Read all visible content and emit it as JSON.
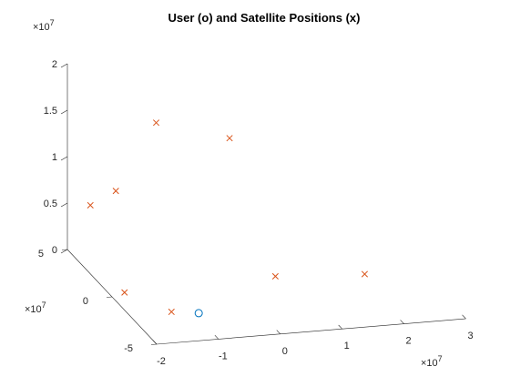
{
  "chart_data": {
    "type": "scatter",
    "projection": "3d",
    "title": "User (o) and Satellite Positions (x)",
    "xlabel": "",
    "ylabel": "",
    "zlabel": "",
    "grid": false,
    "xlim": [
      -2,
      3
    ],
    "ylim": [
      -5,
      5
    ],
    "zlim": [
      0,
      2
    ],
    "x_ticks": [
      "-2",
      "-1",
      "0",
      "1",
      "2",
      "3"
    ],
    "y_ticks": [
      "-5",
      "0",
      "5"
    ],
    "z_ticks": [
      "0",
      "0.5",
      "1",
      "1.5",
      "2"
    ],
    "x_exponent": "×10",
    "x_exponent_power": "7",
    "y_exponent": "×10",
    "y_exponent_power": "7",
    "z_exponent": "×10",
    "z_exponent_power": "7",
    "series": [
      {
        "marker": "x",
        "color": "#D95319",
        "points": [
          [
            -1.85,
            0.61,
            1.07
          ],
          [
            -0.91,
            2.6,
            1.55
          ],
          [
            0.09,
            1.31,
            1.46
          ],
          [
            -2.08,
            1.87,
            0.8
          ],
          [
            1.64,
            -3.09,
            0.36
          ],
          [
            0.44,
            -1.4,
            0.23
          ],
          [
            -1.75,
            0.33,
            0.0
          ],
          [
            -1.32,
            -1.95,
            0.0
          ]
        ]
      },
      {
        "marker": "o",
        "color": "#0072BD",
        "points": [
          [
            -0.93,
            -2.3,
            0.0
          ]
        ]
      }
    ]
  }
}
